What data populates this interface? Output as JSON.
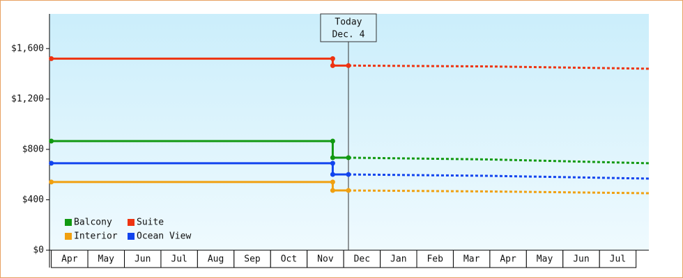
{
  "chart_data": {
    "type": "line",
    "categories": [
      "Apr",
      "May",
      "Jun",
      "Jul",
      "Aug",
      "Sep",
      "Oct",
      "Nov",
      "Dec",
      "Jan",
      "Feb",
      "Mar",
      "Apr",
      "May",
      "Jun",
      "Jul"
    ],
    "xlim": [
      -0.05,
      16.35
    ],
    "ylim": [
      0,
      1875
    ],
    "yticks": [
      {
        "value": 0,
        "label": "$0"
      },
      {
        "value": 400,
        "label": "$400"
      },
      {
        "value": 800,
        "label": "$800"
      },
      {
        "value": 1200,
        "label": "$1,200"
      },
      {
        "value": 1600,
        "label": "$1,600"
      }
    ],
    "annotation": {
      "x": 8.13,
      "lines": [
        "Today",
        "Dec. 4"
      ]
    },
    "series": [
      {
        "name": "Balcony",
        "color": "#119911",
        "x": [
          0,
          7.7,
          7.7,
          8.13
        ],
        "values": [
          866,
          866,
          734,
          734
        ],
        "forecast": {
          "x": [
            8.13,
            12,
            16.35
          ],
          "values": [
            734,
            720,
            690
          ]
        }
      },
      {
        "name": "Suite",
        "color": "#ee3311",
        "x": [
          0,
          7.7,
          7.7,
          8.13
        ],
        "values": [
          1520,
          1520,
          1465,
          1465
        ],
        "forecast": {
          "x": [
            8.13,
            12,
            16.35
          ],
          "values": [
            1465,
            1458,
            1440
          ]
        }
      },
      {
        "name": "Interior",
        "color": "#f0a010",
        "x": [
          0,
          7.7,
          7.7,
          8.13
        ],
        "values": [
          541,
          541,
          474,
          474
        ],
        "forecast": {
          "x": [
            8.13,
            12,
            16.35
          ],
          "values": [
            474,
            466,
            452
          ]
        }
      },
      {
        "name": "Ocean View",
        "color": "#1144ee",
        "x": [
          0,
          7.7,
          7.7,
          8.13
        ],
        "values": [
          690,
          690,
          601,
          601
        ],
        "forecast": {
          "x": [
            8.13,
            12,
            16.35
          ],
          "values": [
            601,
            590,
            568
          ]
        }
      }
    ]
  }
}
